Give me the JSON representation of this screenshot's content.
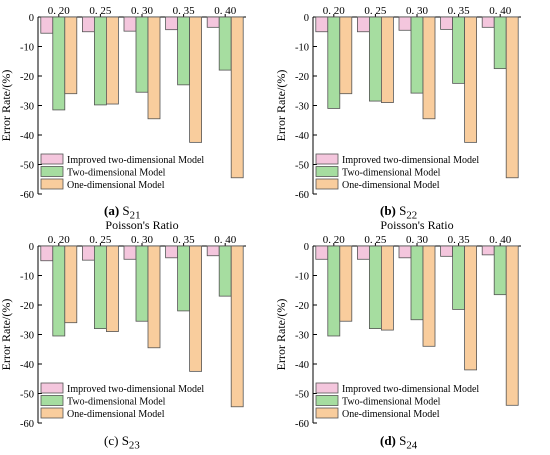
{
  "chart_data": [
    {
      "type": "bar",
      "title": "Poisson's Ratio",
      "ylabel": "Error Rate/(%)",
      "ylim": [
        -60,
        0
      ],
      "yticks": [
        0,
        -10,
        -20,
        -30,
        -40,
        -50,
        -60
      ],
      "categories": [
        "0. 20",
        "0. 25",
        "0. 30",
        "0. 35",
        "0. 40"
      ],
      "legend_position": "bottom-left",
      "series": [
        {
          "name": "Improved two-dimensional Model",
          "color": "#f4c6dd",
          "values": [
            -5.5,
            -5.0,
            -4.8,
            -4.3,
            -3.5
          ]
        },
        {
          "name": "Two-dimensional Model",
          "color": "#a6dda0",
          "values": [
            -31.5,
            -29.8,
            -25.5,
            -23.0,
            -18.0
          ]
        },
        {
          "name": "One-dimensional Model",
          "color": "#f9cd9d",
          "values": [
            -26.0,
            -29.5,
            -34.5,
            -42.5,
            -54.5
          ]
        }
      ],
      "caption_letter": "(a)",
      "caption_label": "S",
      "caption_sub": "21"
    },
    {
      "type": "bar",
      "title": "Poisson's Ratio",
      "ylabel": "Error Rate/(%)",
      "ylim": [
        -60,
        0
      ],
      "yticks": [
        0,
        -10,
        -20,
        -30,
        -40,
        -50,
        -60
      ],
      "categories": [
        "0. 20",
        "0. 25",
        "0. 30",
        "0. 35",
        "0. 40"
      ],
      "legend_position": "bottom-left",
      "series": [
        {
          "name": "Improved two-dimensional Model",
          "color": "#f4c6dd",
          "values": [
            -5.0,
            -5.0,
            -4.5,
            -4.2,
            -3.5
          ]
        },
        {
          "name": "Two-dimensional Model",
          "color": "#a6dda0",
          "values": [
            -31.0,
            -28.5,
            -25.8,
            -22.5,
            -17.5
          ]
        },
        {
          "name": "One-dimensional Model",
          "color": "#f9cd9d",
          "values": [
            -26.0,
            -29.0,
            -34.5,
            -42.5,
            -54.5
          ]
        }
      ],
      "caption_letter": "(b)",
      "caption_label": "S",
      "caption_sub": "22"
    },
    {
      "type": "bar",
      "title": "Poisson's Ratio",
      "ylabel": "Error Rate/(%)",
      "ylim": [
        -60,
        0
      ],
      "yticks": [
        0,
        -10,
        -20,
        -30,
        -40,
        -50,
        -60
      ],
      "categories": [
        "0. 20",
        "0. 25",
        "0. 30",
        "0. 35",
        "0. 40"
      ],
      "legend_position": "bottom-left",
      "series": [
        {
          "name": "Improved two-dimensional Model",
          "color": "#f4c6dd",
          "values": [
            -5.0,
            -4.8,
            -4.5,
            -4.0,
            -3.3
          ]
        },
        {
          "name": "Two-dimensional Model",
          "color": "#a6dda0",
          "values": [
            -30.5,
            -28.0,
            -25.5,
            -22.0,
            -17.0
          ]
        },
        {
          "name": "One-dimensional Model",
          "color": "#f9cd9d",
          "values": [
            -26.0,
            -29.0,
            -34.5,
            -42.5,
            -54.5
          ]
        }
      ],
      "caption_letter": "(c)",
      "caption_label": "S",
      "caption_sub": "23"
    },
    {
      "type": "bar",
      "title": "Poisson's Ratio",
      "ylabel": "Error Rate/(%)",
      "ylim": [
        -60,
        0
      ],
      "yticks": [
        0,
        -10,
        -20,
        -30,
        -40,
        -50,
        -60
      ],
      "categories": [
        "0. 20",
        "0. 25",
        "0. 30",
        "0. 35",
        "0. 40"
      ],
      "legend_position": "bottom-left",
      "series": [
        {
          "name": "Improved two-dimensional Model",
          "color": "#f4c6dd",
          "values": [
            -4.5,
            -4.5,
            -4.0,
            -3.5,
            -3.0
          ]
        },
        {
          "name": "Two-dimensional Model",
          "color": "#a6dda0",
          "values": [
            -30.5,
            -28.0,
            -25.0,
            -21.5,
            -16.5
          ]
        },
        {
          "name": "One-dimensional Model",
          "color": "#f9cd9d",
          "values": [
            -25.5,
            -28.5,
            -34.0,
            -42.0,
            -54.0
          ]
        }
      ],
      "caption_letter": "(d)",
      "caption_label": "S",
      "caption_sub": "24"
    }
  ]
}
